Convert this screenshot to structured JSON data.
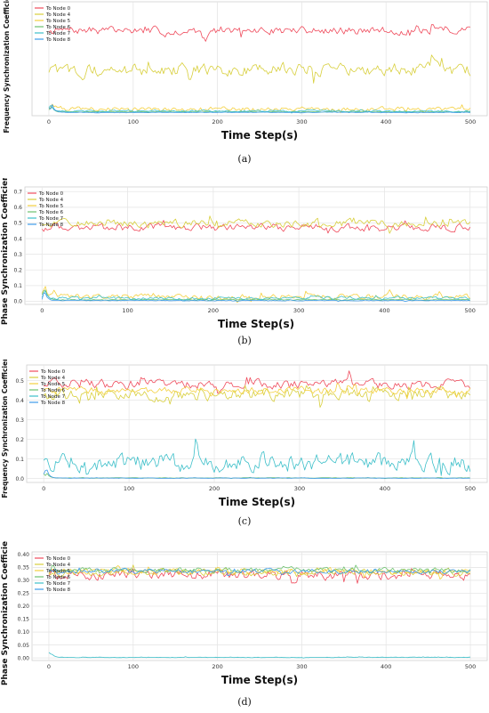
{
  "series_meta": [
    {
      "name": "To Node 0",
      "color": "#ef4b5c"
    },
    {
      "name": "To Node 4",
      "color": "#d8cf3c"
    },
    {
      "name": "To Node 5",
      "color": "#f4d03f"
    },
    {
      "name": "To Node 6",
      "color": "#6cc26e"
    },
    {
      "name": "To Node 7",
      "color": "#3cbfc9"
    },
    {
      "name": "To Node 8",
      "color": "#3d9be9"
    }
  ],
  "chart_data": [
    {
      "type": "line",
      "caption": "(a)",
      "ylabel": "Frequency Synchronization Coefficients",
      "xlabel": "Time Step(s)",
      "xlim": [
        -20,
        520
      ],
      "ylim": [
        -0.02,
        0.85
      ],
      "xticks": [
        0,
        100,
        200,
        300,
        400,
        500
      ],
      "yticks": [],
      "ytick_labels": [],
      "legend": "top-left",
      "series": [
        {
          "name": "To Node 0",
          "mean": 0.63,
          "amp": 0.05
        },
        {
          "name": "To Node 4",
          "mean": 0.33,
          "amp": 0.08
        },
        {
          "name": "To Node 5",
          "mean": 0.03,
          "amp": 0.03
        },
        {
          "name": "To Node 6",
          "mean": 0.01,
          "amp": 0.005
        },
        {
          "name": "To Node 7",
          "mean": 0.015,
          "amp": 0.012
        },
        {
          "name": "To Node 8",
          "mean": 0.005,
          "amp": 0.004
        }
      ]
    },
    {
      "type": "line",
      "caption": "(b)",
      "ylabel": "Phase Synchronization Coefficients",
      "xlabel": "Time Step(s)",
      "xlim": [
        -20,
        520
      ],
      "ylim": [
        -0.02,
        0.73
      ],
      "xticks": [
        0,
        100,
        200,
        300,
        400,
        500
      ],
      "yticks": [
        0.0,
        0.1,
        0.2,
        0.3,
        0.4,
        0.5,
        0.6,
        0.7
      ],
      "ytick_labels": [
        "0.0",
        "0.1",
        "0.2",
        "0.3",
        "0.4",
        "0.5",
        "0.6",
        "0.7"
      ],
      "legend": "top-left",
      "series": [
        {
          "name": "To Node 0",
          "mean": 0.47,
          "amp": 0.04
        },
        {
          "name": "To Node 4",
          "mean": 0.5,
          "amp": 0.04
        },
        {
          "name": "To Node 5",
          "mean": 0.03,
          "amp": 0.03
        },
        {
          "name": "To Node 6",
          "mean": 0.01,
          "amp": 0.005
        },
        {
          "name": "To Node 7",
          "mean": 0.02,
          "amp": 0.015
        },
        {
          "name": "To Node 8",
          "mean": 0.005,
          "amp": 0.004
        }
      ]
    },
    {
      "type": "line",
      "caption": "(c)",
      "ylabel": "Frequency Synchronization Coefficients",
      "xlabel": "Time Step(s)",
      "xlim": [
        -20,
        520
      ],
      "ylim": [
        -0.02,
        0.58
      ],
      "xticks": [
        0,
        100,
        200,
        300,
        400,
        500
      ],
      "yticks": [
        0.0,
        0.1,
        0.2,
        0.3,
        0.4,
        0.5
      ],
      "ytick_labels": [
        "0.0",
        "0.1",
        "0.2",
        "0.3",
        "0.4",
        "0.5"
      ],
      "legend": "top-left",
      "series": [
        {
          "name": "To Node 0",
          "mean": 0.48,
          "amp": 0.04
        },
        {
          "name": "To Node 4",
          "mean": 0.43,
          "amp": 0.05
        },
        {
          "name": "To Node 5",
          "mean": 0.45,
          "amp": 0.03
        },
        {
          "name": "To Node 6",
          "mean": 0.003,
          "amp": 0.002
        },
        {
          "name": "To Node 7",
          "mean": 0.08,
          "amp": 0.08
        },
        {
          "name": "To Node 8",
          "mean": 0.002,
          "amp": 0.002
        }
      ]
    },
    {
      "type": "line",
      "caption": "(d)",
      "ylabel": "Phase Synchronization Coefficients",
      "xlabel": "Time Step(s)",
      "xlim": [
        -20,
        520
      ],
      "ylim": [
        -0.01,
        0.41
      ],
      "xticks": [
        0,
        100,
        200,
        300,
        400,
        500
      ],
      "yticks": [
        0.0,
        0.05,
        0.1,
        0.15,
        0.2,
        0.25,
        0.3,
        0.35,
        0.4
      ],
      "ytick_labels": [
        "0.00",
        "0.05",
        "0.10",
        "0.15",
        "0.20",
        "0.25",
        "0.30",
        "0.35",
        "0.40"
      ],
      "legend": "top-left",
      "series": [
        {
          "name": "To Node 0",
          "mean": 0.32,
          "amp": 0.03
        },
        {
          "name": "To Node 4",
          "mean": 0.33,
          "amp": 0.02
        },
        {
          "name": "To Node 5",
          "mean": 0.335,
          "amp": 0.02
        },
        {
          "name": "To Node 6",
          "mean": 0.34,
          "amp": 0.015
        },
        {
          "name": "To Node 7",
          "mean": 0.002,
          "amp": 0.002
        },
        {
          "name": "To Node 8",
          "mean": 0.335,
          "amp": 0.015
        }
      ]
    }
  ]
}
